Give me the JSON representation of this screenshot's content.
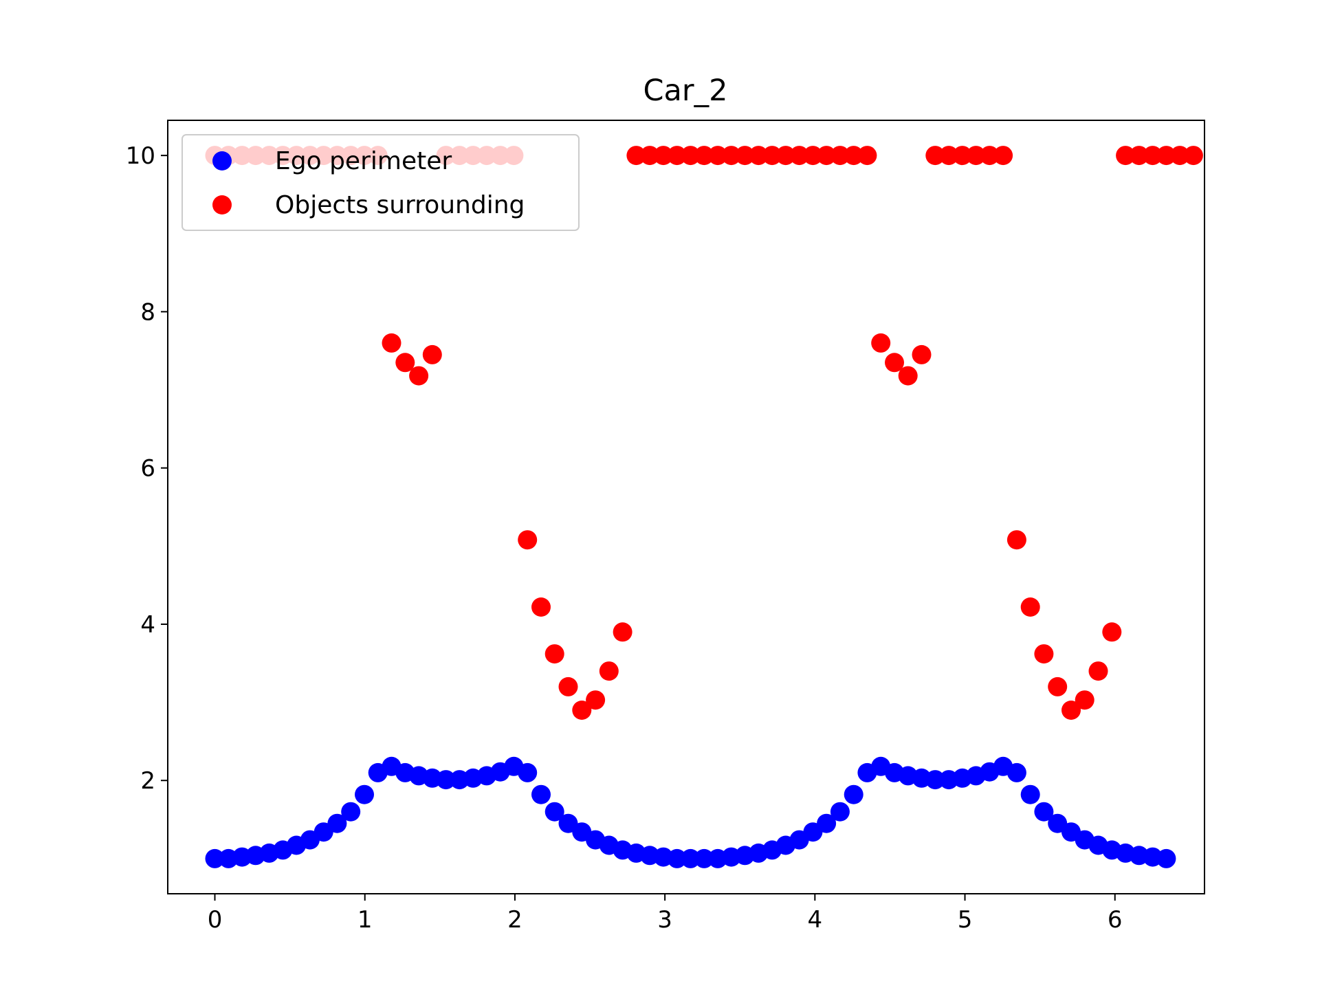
{
  "chart_data": {
    "type": "scatter",
    "title": "Car_2",
    "xlabel": "",
    "ylabel": "",
    "xlim": [
      -0.314,
      6.597
    ],
    "ylim": [
      0.55,
      10.45
    ],
    "xticks": [
      0,
      1,
      2,
      3,
      4,
      5,
      6
    ],
    "yticks": [
      2,
      4,
      6,
      8,
      10
    ],
    "grid": false,
    "legend": {
      "position": "top-left"
    },
    "colors": {
      "ego": "#0000ff",
      "objects": "#ff0000"
    },
    "x_step": 0.0906,
    "series": [
      {
        "name": "Ego perimeter",
        "color": "#0000ff",
        "y": [
          1.0,
          1.0,
          1.02,
          1.04,
          1.07,
          1.11,
          1.17,
          1.24,
          1.34,
          1.45,
          1.6,
          1.82,
          2.1,
          2.18,
          2.1,
          2.06,
          2.03,
          2.01,
          2.01,
          2.03,
          2.06,
          2.11,
          2.18,
          2.1,
          1.82,
          1.6,
          1.45,
          1.34,
          1.24,
          1.17,
          1.11,
          1.07,
          1.04,
          1.02,
          1.0,
          1.0,
          1.0,
          1.0,
          1.02,
          1.04,
          1.07,
          1.11,
          1.17,
          1.24,
          1.34,
          1.45,
          1.6,
          1.82,
          2.1,
          2.18,
          2.1,
          2.06,
          2.03,
          2.01,
          2.01,
          2.03,
          2.06,
          2.11,
          2.18,
          2.1,
          1.82,
          1.6,
          1.45,
          1.34,
          1.24,
          1.17,
          1.11,
          1.07,
          1.04,
          1.02,
          1.0
        ]
      },
      {
        "name": "Objects surrounding",
        "color": "#ff0000",
        "y": [
          10,
          10,
          10,
          10,
          10,
          10,
          10,
          10,
          10,
          10,
          10,
          10,
          10,
          7.6,
          7.35,
          7.18,
          7.45,
          10,
          10,
          10,
          10,
          10,
          10,
          5.08,
          4.22,
          3.62,
          3.2,
          2.9,
          3.03,
          3.4,
          3.9,
          10,
          10,
          10,
          10,
          10,
          10,
          10,
          10,
          10,
          10,
          10,
          10,
          10,
          10,
          10,
          10,
          10,
          10,
          7.6,
          7.35,
          7.18,
          7.45,
          10,
          10,
          10,
          10,
          10,
          10,
          5.08,
          4.22,
          3.62,
          3.2,
          2.9,
          3.03,
          3.4,
          3.9,
          10,
          10,
          10,
          10,
          10,
          10
        ]
      }
    ]
  }
}
